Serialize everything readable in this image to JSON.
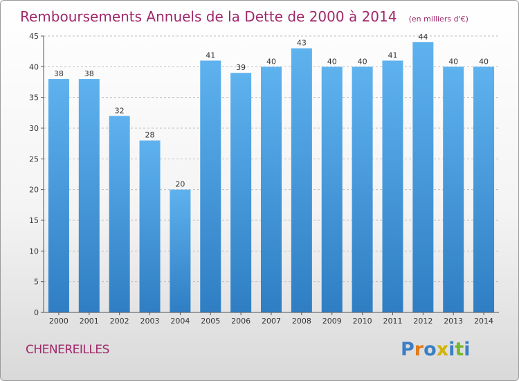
{
  "chart_data": {
    "type": "bar",
    "title": "Remboursements Annuels de la Dette de 2000 à 2014",
    "subtitle": "(en milliers d'€)",
    "categories": [
      "2000",
      "2001",
      "2002",
      "2003",
      "2004",
      "2005",
      "2006",
      "2007",
      "2008",
      "2009",
      "2010",
      "2011",
      "2012",
      "2013",
      "2014"
    ],
    "values": [
      38,
      38,
      32,
      28,
      20,
      41,
      39,
      40,
      43,
      40,
      40,
      41,
      44,
      40,
      40
    ],
    "yticks": [
      0,
      5,
      10,
      15,
      20,
      25,
      30,
      35,
      40,
      45
    ],
    "ylim": [
      0,
      45
    ],
    "xlabel": "",
    "ylabel": "",
    "grid": true,
    "bar_color": "#4a9ee0"
  },
  "commune": "CHENEREILLES",
  "logo": {
    "letters": [
      "P",
      "r",
      "o",
      "x",
      "i",
      "t",
      "i"
    ],
    "colors": [
      "#3a7fc4",
      "#e07b1a",
      "#3a7fc4",
      "#d4b200",
      "#3a7fc4",
      "#76b82a",
      "#3a7fc4"
    ]
  },
  "colors": {
    "title": "#a0286a",
    "grid": "#bfbfbf",
    "axis": "#555555"
  }
}
